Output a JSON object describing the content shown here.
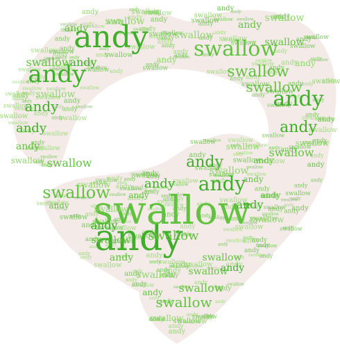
{
  "cloud": {
    "words": [
      "andy",
      "swallow"
    ],
    "colors": {
      "green_dark": "#3fae28",
      "green_mid": "#62c23f",
      "green_light": "#8fd66a",
      "shape_fill": "#f4ebe9"
    }
  }
}
